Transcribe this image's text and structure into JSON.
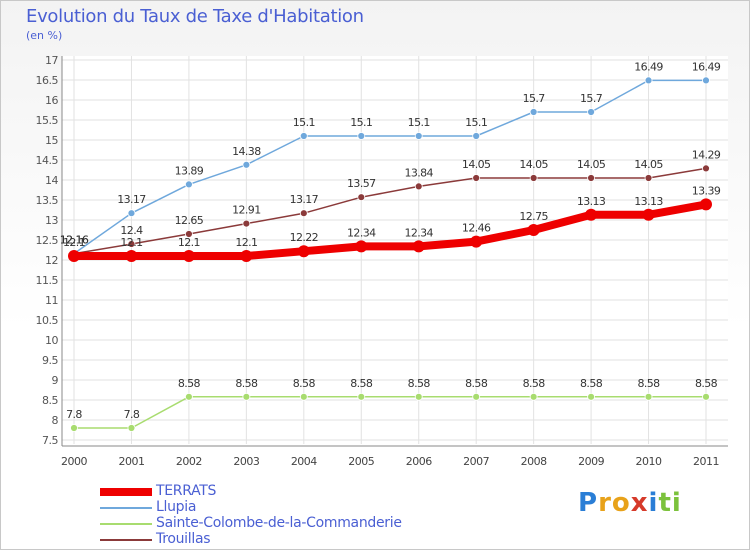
{
  "title": "Evolution du Taux de Taxe d'Habitation",
  "subtitle": "(en %)",
  "logo": {
    "letters": [
      "P",
      "r",
      "o",
      "x",
      "i",
      "t",
      "i"
    ],
    "colors": [
      "#2a7ed6",
      "#e8a21a",
      "#e8a21a",
      "#d63a2a",
      "#2a7ed6",
      "#7cc23c",
      "#7cc23c"
    ]
  },
  "chart_data": {
    "type": "line",
    "title": "Evolution du Taux de Taxe d'Habitation",
    "subtitle": "(en %)",
    "x": [
      "2000",
      "2001",
      "2002",
      "2003",
      "2004",
      "2005",
      "2006",
      "2007",
      "2008",
      "2009",
      "2010",
      "2011"
    ],
    "ylim": [
      7.5,
      17
    ],
    "yticks": [
      "7.5",
      "8",
      "8.5",
      "9",
      "9.5",
      "10",
      "10.5",
      "11",
      "11.5",
      "12",
      "12.5",
      "13",
      "13.5",
      "14",
      "14.5",
      "15",
      "15.5",
      "16",
      "16.5",
      "17"
    ],
    "grid": true,
    "legend_position": "bottom-left",
    "series": [
      {
        "name": "TERRATS",
        "color": "#ee0000",
        "values": [
          12.1,
          12.1,
          12.1,
          12.1,
          12.22,
          12.34,
          12.34,
          12.46,
          12.75,
          13.13,
          13.13,
          13.39
        ],
        "labels": [
          "12.1",
          "12.1",
          "12.1",
          "12.1",
          "12.22",
          "12.34",
          "12.34",
          "12.46",
          "12.75",
          "13.13",
          "13.13",
          "13.39"
        ]
      },
      {
        "name": "Llupia",
        "color": "#6fa8dc",
        "values": [
          12.16,
          13.17,
          13.89,
          14.38,
          15.1,
          15.1,
          15.1,
          15.1,
          15.7,
          15.7,
          16.49,
          16.49
        ],
        "labels": [
          "12.16",
          "13.17",
          "13.89",
          "14.38",
          "15.1",
          "15.1",
          "15.1",
          "15.1",
          "15.7",
          "15.7",
          "16.49",
          "16.49"
        ]
      },
      {
        "name": "Sainte-Colombe-de-la-Commanderie",
        "color": "#a8dc6f",
        "values": [
          7.8,
          7.8,
          8.58,
          8.58,
          8.58,
          8.58,
          8.58,
          8.58,
          8.58,
          8.58,
          8.58,
          8.58
        ],
        "labels": [
          "7.8",
          "7.8",
          "8.58",
          "8.58",
          "8.58",
          "8.58",
          "8.58",
          "8.58",
          "8.58",
          "8.58",
          "8.58",
          "8.58"
        ]
      },
      {
        "name": "Trouillas",
        "color": "#8b3a3a",
        "values": [
          12.16,
          12.4,
          12.65,
          12.91,
          13.17,
          13.57,
          13.84,
          14.05,
          14.05,
          14.05,
          14.05,
          14.29
        ],
        "labels": [
          "12.16",
          "12.4",
          "12.65",
          "12.91",
          "13.17",
          "13.57",
          "13.84",
          "14.05",
          "14.05",
          "14.05",
          "14.05",
          "14.29"
        ]
      }
    ]
  }
}
